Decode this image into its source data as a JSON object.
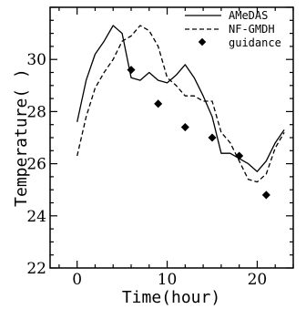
{
  "chart_data": {
    "type": "line",
    "xlabel": "Time(hour)",
    "ylabel": "Temperature(   )",
    "xlim": [
      -3,
      24
    ],
    "ylim": [
      22,
      32
    ],
    "xticks": [
      0,
      10,
      20
    ],
    "yticks": [
      22,
      24,
      26,
      28,
      30
    ],
    "series": [
      {
        "name": "AMeDAS",
        "style": "solid",
        "color": "#000000",
        "x": [
          0,
          1,
          2,
          3,
          4,
          5,
          6,
          7,
          8,
          9,
          10,
          11,
          12,
          13,
          14,
          15,
          16,
          17,
          18,
          19,
          20,
          21,
          22,
          23
        ],
        "y": [
          27.6,
          29.2,
          30.2,
          30.7,
          31.3,
          31.0,
          29.3,
          29.2,
          29.5,
          29.2,
          29.1,
          29.4,
          29.8,
          29.3,
          28.6,
          27.8,
          26.4,
          26.4,
          26.2,
          26.0,
          25.7,
          26.1,
          26.8,
          27.3
        ]
      },
      {
        "name": "NF-GMDH",
        "style": "dashed",
        "color": "#000000",
        "x": [
          0,
          1,
          2,
          3,
          4,
          5,
          6,
          7,
          8,
          9,
          10,
          11,
          12,
          13,
          14,
          15,
          16,
          17,
          18,
          19,
          20,
          21,
          22,
          23
        ],
        "y": [
          26.3,
          27.8,
          28.9,
          29.5,
          30.0,
          30.7,
          30.9,
          31.3,
          31.1,
          30.5,
          29.3,
          29.0,
          28.6,
          28.6,
          28.4,
          28.4,
          27.2,
          26.8,
          26.1,
          25.4,
          25.3,
          25.6,
          26.6,
          27.2
        ]
      },
      {
        "name": "guidance",
        "style": "marker",
        "color": "#000000",
        "x": [
          6,
          9,
          12,
          15,
          18,
          21
        ],
        "y": [
          29.6,
          28.3,
          27.4,
          27.0,
          26.3,
          24.8
        ]
      }
    ]
  }
}
